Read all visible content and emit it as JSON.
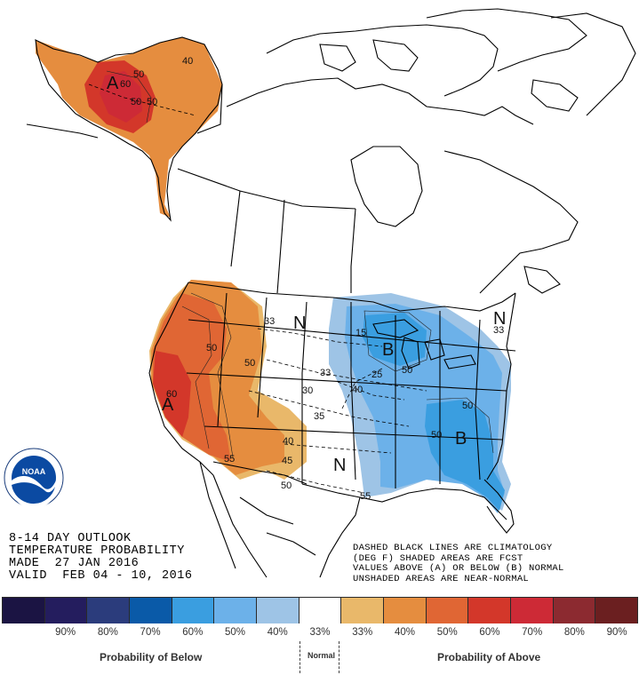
{
  "outlook": {
    "line1": "8-14 DAY OUTLOOK",
    "line2": "TEMPERATURE PROBABILITY",
    "line3": "MADE  27 JAN 2016",
    "line4": "VALID  FEB 04 - 10, 2016"
  },
  "legend_note": {
    "line1": "DASHED BLACK LINES ARE CLIMATOLOGY",
    "line2": "(DEG F) SHADED AREAS ARE FCST",
    "line3": "VALUES ABOVE (A) OR BELOW (B) NORMAL",
    "line4": "UNSHADED AREAS ARE NEAR-NORMAL"
  },
  "logo": {
    "text": "NOAA",
    "ring_text": "NATIONAL OCEANIC AND ATMOSPHERIC ADMINISTRATION · U.S. DEPARTMENT OF COMMERCE"
  },
  "region_labels": {
    "above": "A",
    "below": "B",
    "normal": "N"
  },
  "contour_labels": [
    "50",
    "40",
    "60",
    "50",
    "50",
    "50",
    "60",
    "33",
    "50",
    "33",
    "30",
    "40",
    "35",
    "40",
    "45",
    "55",
    "50",
    "15",
    "25",
    "50",
    "50",
    "50",
    "55",
    "33"
  ],
  "colors": {
    "below_90": "#1b1443",
    "below_80": "#241d5e",
    "below_70": "#2b3c7c",
    "below_60": "#0a5aa8",
    "below_50": "#3a9ee0",
    "below_40": "#6cb1e9",
    "below_33": "#9ec4e6",
    "normal": "#ffffff",
    "above_33": "#e9b86a",
    "above_40": "#e58d3f",
    "above_50": "#e06634",
    "above_60": "#d3372a",
    "above_70": "#cd2a36",
    "above_80": "#8c2a30",
    "above_90": "#6b1f20"
  },
  "scale": {
    "ticks": [
      "90%",
      "80%",
      "70%",
      "60%",
      "50%",
      "40%",
      "33%",
      "33%",
      "40%",
      "50%",
      "60%",
      "70%",
      "80%",
      "90%"
    ],
    "caption_below": "Probability of Below",
    "caption_normal": "Normal",
    "caption_above": "Probability of Above"
  }
}
